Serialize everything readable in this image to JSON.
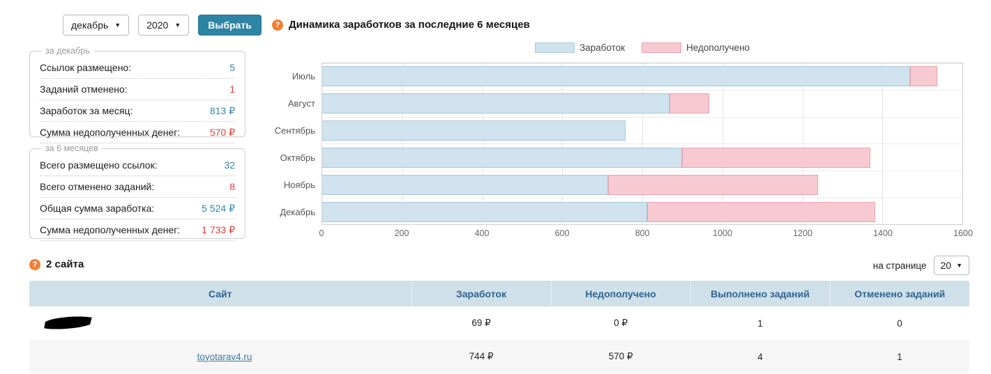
{
  "controls": {
    "month_select": "декабрь",
    "year_select": "2020",
    "select_button": "Выбрать"
  },
  "month_summary": {
    "legend": "за декабрь",
    "rows": [
      {
        "label": "Ссылок размещено:",
        "value": "5",
        "color": "blue"
      },
      {
        "label": "Заданий отменено:",
        "value": "1",
        "color": "red"
      },
      {
        "label": "Заработок за месяц:",
        "value": "813 ₽",
        "color": "blue"
      },
      {
        "label": "Сумма недополученных денег:",
        "value": "570 ₽",
        "color": "red"
      }
    ]
  },
  "half_year_summary": {
    "legend": "за 6 месяцев",
    "rows": [
      {
        "label": "Всего размещено ссылок:",
        "value": "32",
        "color": "blue"
      },
      {
        "label": "Всего отменено заданий:",
        "value": "8",
        "color": "red"
      },
      {
        "label": "Общая сумма заработка:",
        "value": "5 524 ₽",
        "color": "blue"
      },
      {
        "label": "Сумма недополученных денег:",
        "value": "1 733 ₽",
        "color": "red"
      }
    ]
  },
  "chart_data": {
    "type": "bar",
    "orientation": "horizontal",
    "stacked": true,
    "title": "Динамика заработков за последние 6 месяцев",
    "categories": [
      "Июль",
      "Август",
      "Сентябрь",
      "Октябрь",
      "Ноябрь",
      "Декабрь"
    ],
    "series": [
      {
        "name": "Заработок",
        "color": "#cfe2ed",
        "border_color": "#a9c8da",
        "values": [
          1470,
          868,
          758,
          900,
          715,
          813
        ]
      },
      {
        "name": "Недополучено",
        "color": "#f7cad1",
        "border_color": "#e8a2ae",
        "values": [
          68,
          100,
          0,
          470,
          525,
          570
        ]
      }
    ],
    "xlim": [
      0,
      1600
    ],
    "x_ticks": [
      0,
      200,
      400,
      600,
      800,
      1000,
      1200,
      1400,
      1600
    ],
    "legend_position": "top",
    "grid": true
  },
  "sites_section": {
    "title": "2 сайта",
    "per_page_label": "на странице",
    "per_page_value": "20",
    "table": {
      "headers": [
        "Сайт",
        "Заработок",
        "Недополучено",
        "Выполнено заданий",
        "Отменено заданий"
      ],
      "rows": [
        {
          "site": "",
          "redacted": true,
          "earned": "69 ₽",
          "missed": "0 ₽",
          "completed": "1",
          "cancelled": "0"
        },
        {
          "site": "toyotarav4.ru",
          "redacted": false,
          "earned": "744 ₽",
          "missed": "570 ₽",
          "completed": "4",
          "cancelled": "1"
        }
      ]
    }
  },
  "colors": {
    "button_bg": "#2e84a5",
    "value_positive": "#3585ad",
    "value_negative": "#dc3f3b",
    "table_header_bg": "#cfe0e9",
    "table_header_text": "#2f6391",
    "link": "#3b78a3",
    "help_icon": "#f08033",
    "earned_fill": "#cfe2ed",
    "missed_fill": "#f7cad1"
  }
}
